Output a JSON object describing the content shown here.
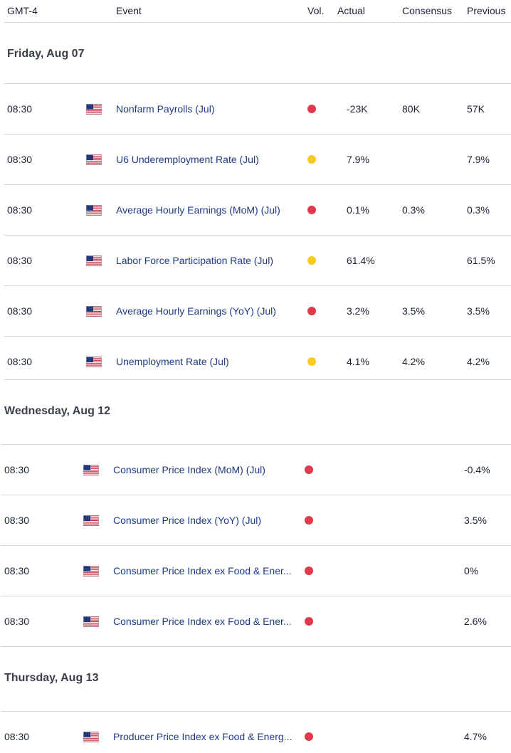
{
  "header": {
    "timezone": "GMT-4",
    "event": "Event",
    "vol": "Vol.",
    "actual": "Actual",
    "consensus": "Consensus",
    "previous": "Previous"
  },
  "colors": {
    "high": "#e0394b",
    "medium": "#f7cc1f"
  },
  "groups": [
    {
      "date": "Friday, Aug 07",
      "events": [
        {
          "time": "08:30",
          "country": "us-flag-icon",
          "name": "Nonfarm Payrolls (Jul)",
          "vol": "high",
          "actual": "-23K",
          "consensus": "80K",
          "previous": "57K"
        },
        {
          "time": "08:30",
          "country": "us-flag-icon",
          "name": "U6 Underemployment Rate (Jul)",
          "vol": "medium",
          "actual": "7.9%",
          "consensus": "",
          "previous": "7.9%"
        },
        {
          "time": "08:30",
          "country": "us-flag-icon",
          "name": "Average Hourly Earnings (MoM) (Jul)",
          "vol": "high",
          "actual": "0.1%",
          "consensus": "0.3%",
          "previous": "0.3%"
        },
        {
          "time": "08:30",
          "country": "us-flag-icon",
          "name": "Labor Force Participation Rate (Jul)",
          "vol": "medium",
          "actual": "61.4%",
          "consensus": "",
          "previous": "61.5%"
        },
        {
          "time": "08:30",
          "country": "us-flag-icon",
          "name": "Average Hourly Earnings (YoY) (Jul)",
          "vol": "high",
          "actual": "3.2%",
          "consensus": "3.5%",
          "previous": "3.5%"
        },
        {
          "time": "08:30",
          "country": "us-flag-icon",
          "name": "Unemployment Rate (Jul)",
          "vol": "medium",
          "actual": "4.1%",
          "consensus": "4.2%",
          "previous": "4.2%"
        }
      ]
    },
    {
      "date": "Wednesday, Aug 12",
      "events": [
        {
          "time": "08:30",
          "country": "us-flag-icon",
          "name": "Consumer Price Index (MoM) (Jul)",
          "vol": "high",
          "actual": "",
          "consensus": "",
          "previous": "-0.4%"
        },
        {
          "time": "08:30",
          "country": "us-flag-icon",
          "name": "Consumer Price Index (YoY) (Jul)",
          "vol": "high",
          "actual": "",
          "consensus": "",
          "previous": "3.5%"
        },
        {
          "time": "08:30",
          "country": "us-flag-icon",
          "name": "Consumer Price Index ex Food & Ener...",
          "vol": "high",
          "actual": "",
          "consensus": "",
          "previous": "0%"
        },
        {
          "time": "08:30",
          "country": "us-flag-icon",
          "name": "Consumer Price Index ex Food & Ener...",
          "vol": "high",
          "actual": "",
          "consensus": "",
          "previous": "2.6%"
        }
      ]
    },
    {
      "date": "Thursday, Aug 13",
      "events": [
        {
          "time": "08:30",
          "country": "us-flag-icon",
          "name": "Producer Price Index ex Food & Energ...",
          "vol": "high",
          "actual": "",
          "consensus": "",
          "previous": "4.7%"
        }
      ]
    }
  ]
}
